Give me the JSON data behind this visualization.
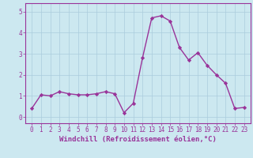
{
  "x": [
    0,
    1,
    2,
    3,
    4,
    5,
    6,
    7,
    8,
    9,
    10,
    11,
    12,
    13,
    14,
    15,
    16,
    17,
    18,
    19,
    20,
    21,
    22,
    23
  ],
  "y": [
    0.4,
    1.05,
    1.0,
    1.2,
    1.1,
    1.05,
    1.05,
    1.1,
    1.2,
    1.1,
    0.2,
    0.65,
    2.8,
    4.7,
    4.8,
    4.55,
    3.3,
    2.7,
    3.05,
    2.45,
    2.0,
    1.6,
    0.4,
    0.45
  ],
  "line_color": "#993399",
  "marker": "D",
  "marker_size": 2.2,
  "line_width": 1.0,
  "bg_color": "#cce8f0",
  "grid_color": "#aaccdd",
  "axis_color": "#993399",
  "tick_color": "#993399",
  "xlabel": "Windchill (Refroidissement éolien,°C)",
  "xlabel_fontsize": 6.5,
  "tick_fontsize": 5.5,
  "ytick_labels": [
    "0",
    "1",
    "2",
    "3",
    "4",
    "5"
  ],
  "ytick_values": [
    0,
    1,
    2,
    3,
    4,
    5
  ],
  "ylim": [
    -0.3,
    5.4
  ],
  "xlim": [
    -0.7,
    23.7
  ]
}
